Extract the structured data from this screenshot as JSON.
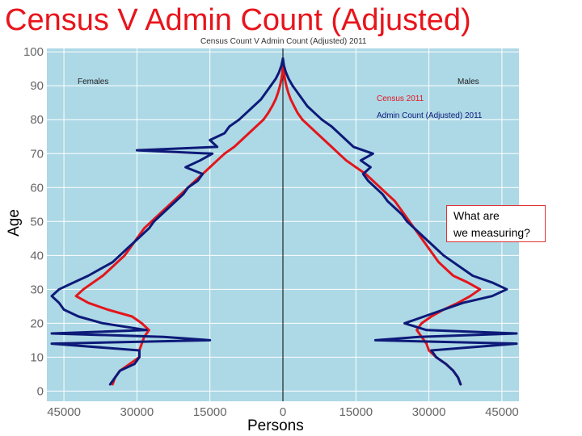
{
  "slide": {
    "title": "Census V Admin Count (Adjusted)"
  },
  "callout": {
    "text": "What are\nwe measuring?"
  },
  "chart_data": {
    "type": "line",
    "title": "Census Count V Admin Count (Adjusted) 2011",
    "xlabel": "Persons",
    "ylabel": "Age",
    "xlim": [
      -48500,
      48500
    ],
    "ylim": [
      -3,
      101
    ],
    "x_ticks": [
      -45000,
      -30000,
      -15000,
      0,
      15000,
      30000,
      45000
    ],
    "x_tick_labels": [
      "45000",
      "30000",
      "15000",
      "0",
      "15000",
      "30000",
      "45000"
    ],
    "y_ticks": [
      0,
      10,
      20,
      30,
      40,
      50,
      60,
      70,
      80,
      90,
      100
    ],
    "grid": true,
    "background": "#add8e6",
    "legend_position": "top-right",
    "annotations": {
      "left": "Females",
      "right": "Males"
    },
    "series": [
      {
        "name": "Census 2011",
        "color": "#e3161b",
        "females": [
          [
            -35000,
            2
          ],
          [
            -34500,
            4
          ],
          [
            -33500,
            6
          ],
          [
            -31500,
            8
          ],
          [
            -29500,
            10
          ],
          [
            -29500,
            12
          ],
          [
            -29000,
            14
          ],
          [
            -28500,
            16
          ],
          [
            -27500,
            18
          ],
          [
            -29000,
            20
          ],
          [
            -31000,
            22
          ],
          [
            -36000,
            24
          ],
          [
            -40000,
            26
          ],
          [
            -42500,
            28
          ],
          [
            -41000,
            30
          ],
          [
            -39000,
            32
          ],
          [
            -37000,
            34
          ],
          [
            -35500,
            36
          ],
          [
            -34000,
            38
          ],
          [
            -32500,
            40
          ],
          [
            -31500,
            42
          ],
          [
            -30500,
            44
          ],
          [
            -29500,
            46
          ],
          [
            -28500,
            48
          ],
          [
            -27000,
            50
          ],
          [
            -25500,
            52
          ],
          [
            -24000,
            54
          ],
          [
            -22500,
            56
          ],
          [
            -21000,
            58
          ],
          [
            -19500,
            60
          ],
          [
            -18000,
            62
          ],
          [
            -16500,
            64
          ],
          [
            -15000,
            66
          ],
          [
            -13500,
            68
          ],
          [
            -12000,
            70
          ],
          [
            -10000,
            72
          ],
          [
            -8500,
            74
          ],
          [
            -7000,
            76
          ],
          [
            -5500,
            78
          ],
          [
            -4000,
            80
          ],
          [
            -3000,
            82
          ],
          [
            -2200,
            84
          ],
          [
            -1500,
            86
          ],
          [
            -1000,
            88
          ],
          [
            -600,
            90
          ],
          [
            -300,
            92
          ],
          [
            -100,
            94
          ],
          [
            0,
            96
          ],
          [
            0,
            98
          ]
        ],
        "males": [
          [
            36500,
            2
          ],
          [
            36000,
            4
          ],
          [
            35000,
            6
          ],
          [
            33500,
            8
          ],
          [
            31500,
            10
          ],
          [
            30000,
            12
          ],
          [
            29500,
            14
          ],
          [
            28500,
            16
          ],
          [
            27500,
            18
          ],
          [
            28500,
            20
          ],
          [
            30500,
            22
          ],
          [
            33000,
            24
          ],
          [
            36000,
            26
          ],
          [
            38500,
            28
          ],
          [
            40500,
            30
          ],
          [
            38000,
            32
          ],
          [
            35000,
            34
          ],
          [
            33500,
            36
          ],
          [
            32000,
            38
          ],
          [
            31000,
            40
          ],
          [
            30000,
            42
          ],
          [
            29000,
            44
          ],
          [
            28000,
            46
          ],
          [
            27000,
            48
          ],
          [
            26000,
            50
          ],
          [
            25000,
            52
          ],
          [
            24000,
            54
          ],
          [
            23000,
            56
          ],
          [
            21500,
            58
          ],
          [
            20000,
            60
          ],
          [
            18500,
            62
          ],
          [
            17000,
            64
          ],
          [
            15000,
            66
          ],
          [
            13000,
            68
          ],
          [
            11500,
            70
          ],
          [
            10000,
            72
          ],
          [
            8500,
            74
          ],
          [
            7000,
            76
          ],
          [
            5500,
            78
          ],
          [
            4000,
            80
          ],
          [
            3000,
            82
          ],
          [
            2300,
            84
          ],
          [
            1600,
            86
          ],
          [
            1100,
            88
          ],
          [
            700,
            90
          ],
          [
            400,
            92
          ],
          [
            200,
            94
          ],
          [
            100,
            96
          ],
          [
            0,
            98
          ]
        ]
      },
      {
        "name": "Admin Count (Adjusted) 2011",
        "color": "#0d1a78",
        "females": [
          [
            -35500,
            2
          ],
          [
            -34500,
            4
          ],
          [
            -33500,
            6
          ],
          [
            -30500,
            8
          ],
          [
            -29500,
            10
          ],
          [
            -29500,
            12
          ],
          [
            -47500,
            14
          ],
          [
            -15000,
            15
          ],
          [
            -24500,
            16
          ],
          [
            -47500,
            17
          ],
          [
            -28000,
            18
          ],
          [
            -37000,
            20
          ],
          [
            -42000,
            22
          ],
          [
            -45000,
            24
          ],
          [
            -46000,
            26
          ],
          [
            -47500,
            28
          ],
          [
            -46000,
            30
          ],
          [
            -43000,
            32
          ],
          [
            -40000,
            34
          ],
          [
            -37500,
            36
          ],
          [
            -35000,
            38
          ],
          [
            -33500,
            40
          ],
          [
            -32000,
            42
          ],
          [
            -30500,
            44
          ],
          [
            -29000,
            46
          ],
          [
            -27500,
            48
          ],
          [
            -26500,
            50
          ],
          [
            -25000,
            52
          ],
          [
            -23500,
            54
          ],
          [
            -22000,
            56
          ],
          [
            -20500,
            58
          ],
          [
            -19500,
            60
          ],
          [
            -17500,
            62
          ],
          [
            -16500,
            64
          ],
          [
            -20000,
            66
          ],
          [
            -17000,
            68
          ],
          [
            -14500,
            70
          ],
          [
            -30000,
            71
          ],
          [
            -13500,
            72
          ],
          [
            -15000,
            74
          ],
          [
            -12000,
            76
          ],
          [
            -11000,
            78
          ],
          [
            -9000,
            80
          ],
          [
            -7500,
            82
          ],
          [
            -6000,
            84
          ],
          [
            -4500,
            86
          ],
          [
            -3500,
            88
          ],
          [
            -2500,
            90
          ],
          [
            -1500,
            92
          ],
          [
            -800,
            94
          ],
          [
            -300,
            96
          ],
          [
            0,
            98
          ]
        ],
        "males": [
          [
            36500,
            2
          ],
          [
            36000,
            4
          ],
          [
            35000,
            6
          ],
          [
            33500,
            8
          ],
          [
            31500,
            10
          ],
          [
            30500,
            12
          ],
          [
            48000,
            14
          ],
          [
            19000,
            15
          ],
          [
            28000,
            16
          ],
          [
            48000,
            17
          ],
          [
            29500,
            18
          ],
          [
            25000,
            20
          ],
          [
            29000,
            22
          ],
          [
            33000,
            24
          ],
          [
            37000,
            26
          ],
          [
            43000,
            28
          ],
          [
            46000,
            30
          ],
          [
            43000,
            32
          ],
          [
            39000,
            34
          ],
          [
            37000,
            36
          ],
          [
            35000,
            38
          ],
          [
            33000,
            40
          ],
          [
            31500,
            42
          ],
          [
            30000,
            44
          ],
          [
            28500,
            46
          ],
          [
            27000,
            48
          ],
          [
            25500,
            50
          ],
          [
            24500,
            52
          ],
          [
            23000,
            54
          ],
          [
            21500,
            56
          ],
          [
            20500,
            58
          ],
          [
            19000,
            60
          ],
          [
            17500,
            62
          ],
          [
            16500,
            64
          ],
          [
            18000,
            66
          ],
          [
            16000,
            68
          ],
          [
            18500,
            70
          ],
          [
            14500,
            72
          ],
          [
            13000,
            74
          ],
          [
            11500,
            76
          ],
          [
            10000,
            78
          ],
          [
            8000,
            80
          ],
          [
            6500,
            82
          ],
          [
            5000,
            84
          ],
          [
            4000,
            86
          ],
          [
            3000,
            88
          ],
          [
            2000,
            90
          ],
          [
            1200,
            92
          ],
          [
            600,
            94
          ],
          [
            200,
            96
          ],
          [
            0,
            98
          ]
        ]
      }
    ]
  }
}
